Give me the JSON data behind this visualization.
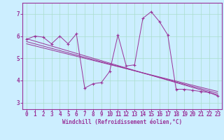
{
  "xlabel": "Windchill (Refroidissement éolien,°C)",
  "x_ticks": [
    0,
    1,
    2,
    3,
    4,
    5,
    6,
    7,
    8,
    9,
    10,
    11,
    12,
    13,
    14,
    15,
    16,
    17,
    18,
    19,
    20,
    21,
    22,
    23
  ],
  "y_ticks": [
    3,
    4,
    5,
    6,
    7
  ],
  "xlim": [
    -0.5,
    23.5
  ],
  "ylim": [
    2.7,
    7.5
  ],
  "background_color": "#cceeff",
  "line_color": "#993399",
  "data_x": [
    0,
    1,
    2,
    3,
    4,
    5,
    6,
    7,
    8,
    9,
    10,
    11,
    12,
    13,
    14,
    15,
    16,
    17,
    18,
    19,
    20,
    21,
    22,
    23
  ],
  "data_y": [
    5.85,
    6.0,
    5.95,
    5.65,
    6.0,
    5.65,
    6.1,
    3.65,
    3.85,
    3.9,
    4.4,
    6.05,
    4.65,
    4.7,
    6.8,
    7.1,
    6.65,
    6.05,
    3.6,
    3.6,
    3.55,
    3.5,
    3.45,
    3.3
  ],
  "reg_lines": [
    [
      0,
      5.88,
      23,
      3.35
    ],
    [
      0,
      5.75,
      23,
      3.42
    ],
    [
      0,
      5.65,
      23,
      3.5
    ]
  ],
  "grid_color": "#aaddcc",
  "tick_fontsize": 5.5,
  "xlabel_fontsize": 5.5
}
